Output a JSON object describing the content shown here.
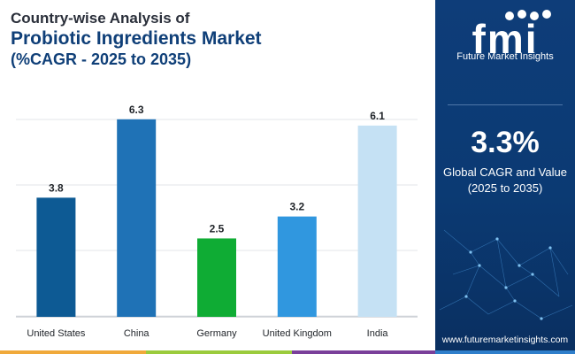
{
  "title": {
    "line1": "Country-wise Analysis of",
    "line2": "Probiotic Ingredients Market",
    "line3": "(%CAGR - 2025 to 2035)"
  },
  "chart_data": {
    "type": "bar",
    "categories": [
      "United States",
      "China",
      "Germany",
      "United Kingdom",
      "India"
    ],
    "values": [
      3.8,
      6.3,
      2.5,
      3.2,
      6.1
    ],
    "data_labels": [
      "3.8",
      "6.3",
      "2.5",
      "3.2",
      "6.1"
    ],
    "colors": [
      "#0d5a94",
      "#1f72b6",
      "#0fac34",
      "#3097df",
      "#c5e1f4"
    ],
    "ylim": [
      0,
      7
    ],
    "grid": true,
    "title": "Probiotic Ingredients Market",
    "xlabel": "",
    "ylabel": ""
  },
  "sidebar": {
    "logo_text": "fmi",
    "brand": "Future Market Insights",
    "cagr_value": "3.3%",
    "cagr_label_1": "Global CAGR and Value",
    "cagr_label_2": "(2025 to 2035)",
    "url": "www.futuremarketinsights.com"
  },
  "stripe_colors": [
    "#f0a93a",
    "#9bcb3c",
    "#7a3f9a",
    "#2f7fcb"
  ]
}
